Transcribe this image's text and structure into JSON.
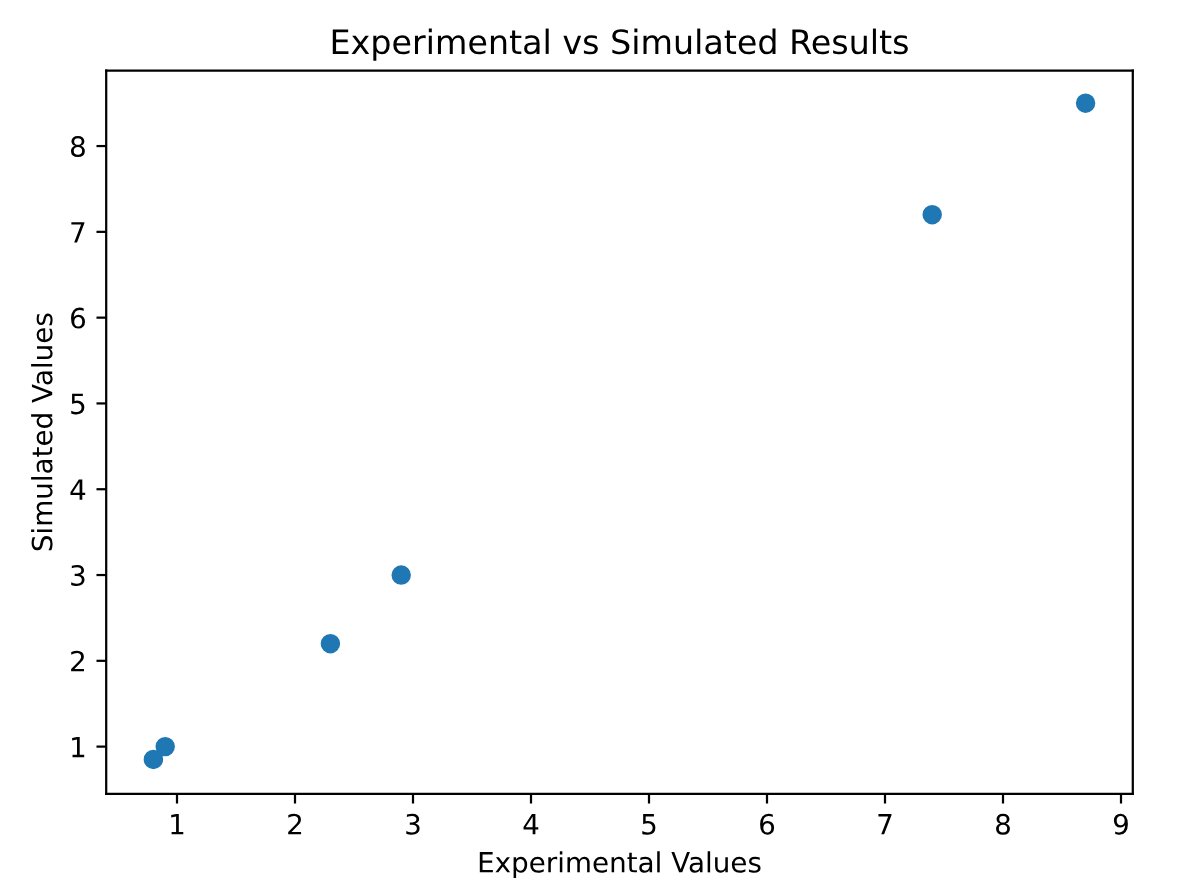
{
  "chart_data": {
    "type": "scatter",
    "title": "Experimental vs Simulated Results",
    "xlabel": "Experimental Values",
    "ylabel": "Simulated Values",
    "x": [
      0.8,
      0.9,
      2.3,
      2.9,
      7.4,
      8.7
    ],
    "series": [
      {
        "color": "#1f77b4",
        "values": [
          0.85,
          1.0,
          2.2,
          3.0,
          7.2,
          8.5
        ]
      }
    ],
    "xlim": [
      0.4,
      9.1
    ],
    "ylim": [
      0.45,
      8.88
    ],
    "xticks": [
      1,
      2,
      3,
      4,
      5,
      6,
      7,
      8,
      9
    ],
    "yticks": [
      1,
      2,
      3,
      4,
      5,
      6,
      7,
      8
    ],
    "marker": "circle",
    "grid": false,
    "legend": false
  }
}
